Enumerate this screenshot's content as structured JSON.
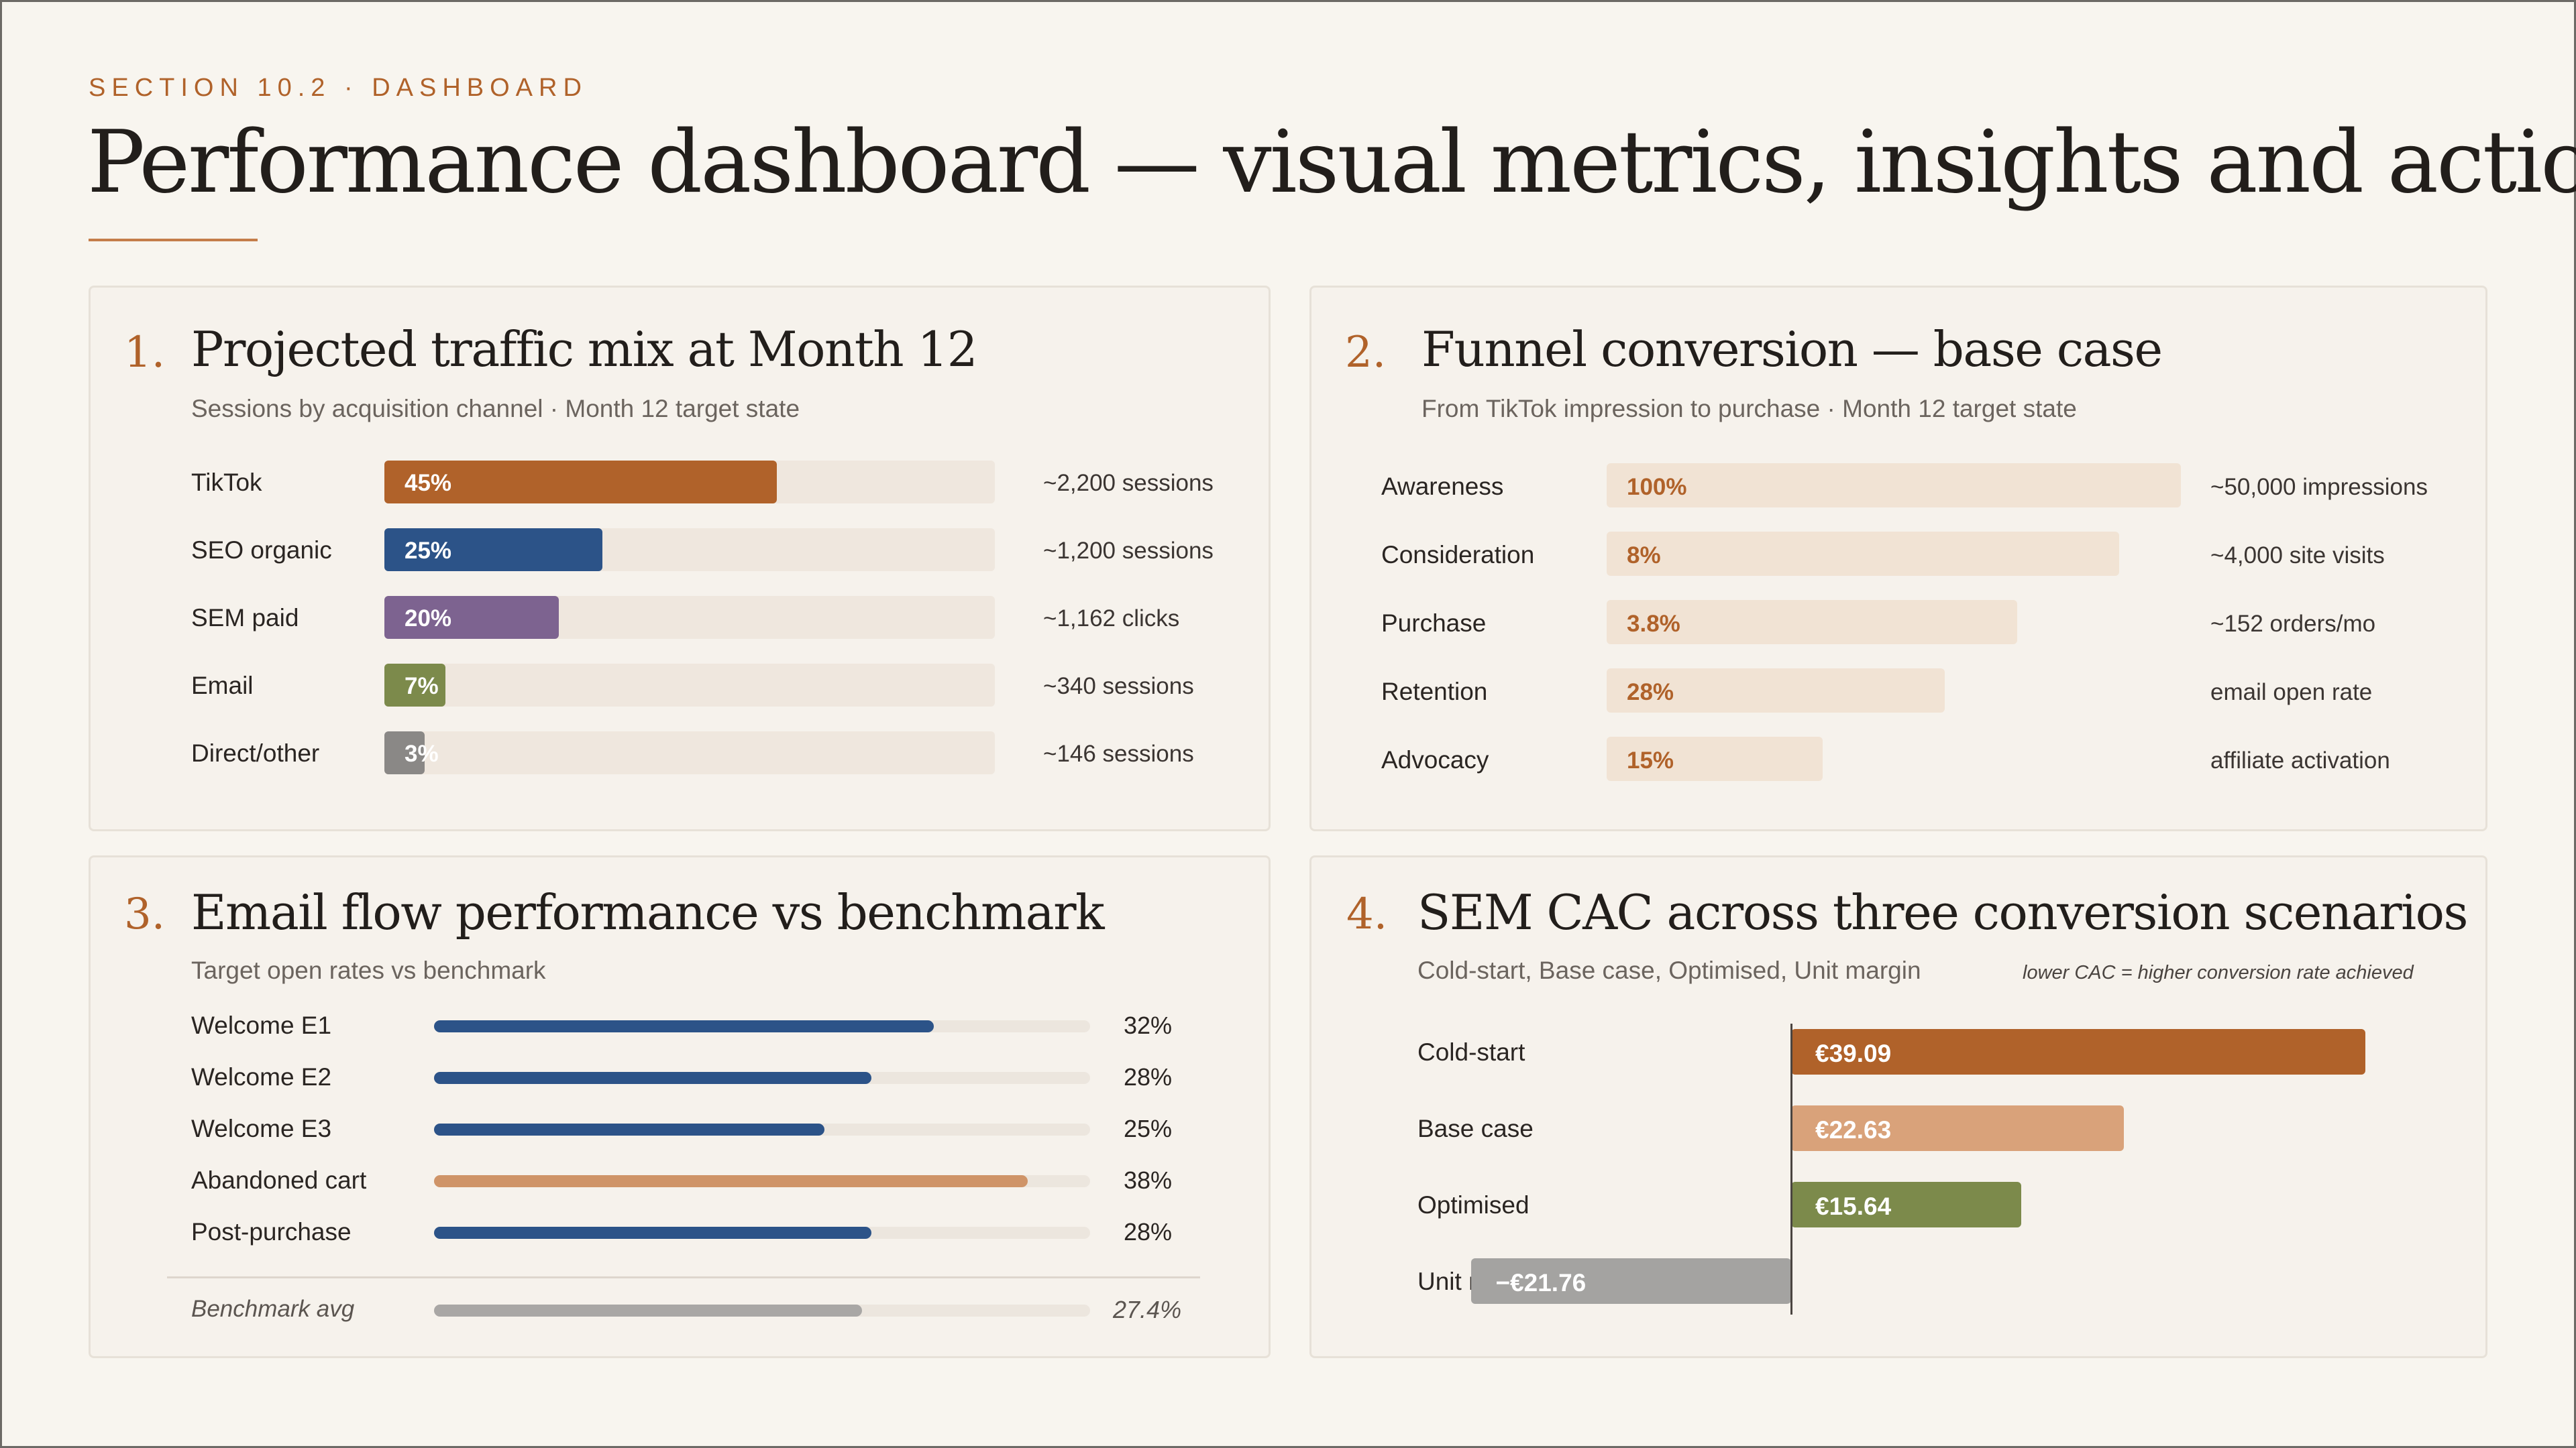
{
  "header": {
    "section": "SECTION 10.2 · DASHBOARD",
    "title": "Performance dashboard — visual metrics, insights and actions"
  },
  "colors": {
    "accent": "#b0622a",
    "navy": "#2c5388",
    "purple": "#7d6390",
    "olive": "#7c8a4b",
    "grey": "#8a8886",
    "peach": "#d9a27a",
    "funnel_fill": "#f1e3d4"
  },
  "traffic": {
    "number": "1.",
    "title": "Projected traffic mix at Month 12",
    "subtitle": "Sessions by acquisition channel · Month 12 target state",
    "chart_data": {
      "type": "bar",
      "orientation": "horizontal",
      "categories": [
        "TikTok",
        "SEO organic",
        "SEM paid",
        "Email",
        "Direct/other"
      ],
      "values": [
        45,
        25,
        20,
        7,
        3
      ],
      "value_labels": [
        "45%",
        "25%",
        "20%",
        "7%",
        "3%"
      ],
      "annotations": [
        "~2,200 sessions",
        "~1,200 sessions",
        "~1,162 clicks",
        "~340 sessions",
        "~146 sessions"
      ],
      "colors": [
        "#b0622a",
        "#2c5388",
        "#7d6390",
        "#7c8a4b",
        "#8a8886"
      ],
      "xlim": [
        0,
        70
      ]
    }
  },
  "funnel": {
    "number": "2.",
    "title": "Funnel conversion — base case",
    "subtitle": "From TikTok impression to purchase · Month 12 target state",
    "chart_data": {
      "type": "bar",
      "orientation": "horizontal",
      "categories": [
        "Awareness",
        "Consideration",
        "Purchase",
        "Retention",
        "Advocacy"
      ],
      "value_labels": [
        "100%",
        "8%",
        "3.8%",
        "28%",
        "15%"
      ],
      "annotations": [
        "~50,000 impressions",
        "~4,000 site visits",
        "~152 orders/mo",
        "email open rate",
        "affiliate activation"
      ]
    }
  },
  "email": {
    "number": "3.",
    "title": "Email flow performance vs benchmark",
    "subtitle": "Target open rates vs benchmark",
    "chart_data": {
      "type": "bar",
      "orientation": "horizontal",
      "categories": [
        "Welcome E1",
        "Welcome E2",
        "Welcome E3",
        "Abandoned cart",
        "Post-purchase"
      ],
      "values": [
        32,
        28,
        25,
        38,
        28
      ],
      "value_labels": [
        "32%",
        "28%",
        "25%",
        "38%",
        "28%"
      ],
      "colors": [
        "#2c5388",
        "#2c5388",
        "#2c5388",
        "#cf9468",
        "#2c5388"
      ],
      "benchmark": {
        "label": "Benchmark avg",
        "value": 27.4,
        "value_label": "27.4%"
      }
    }
  },
  "sem": {
    "number": "4.",
    "title": "SEM CAC across three conversion scenarios",
    "subtitle": "Cold-start, Base case, Optimised, Unit margin",
    "note": "lower CAC = higher conversion rate achieved",
    "chart_data": {
      "type": "bar",
      "orientation": "horizontal",
      "categories": [
        "Cold-start",
        "Base case",
        "Optimised",
        "Unit margin"
      ],
      "values": [
        39.09,
        22.63,
        15.64,
        -21.76
      ],
      "value_labels": [
        "€39.09",
        "€22.63",
        "€15.64",
        "−€21.76"
      ],
      "colors": [
        "#b0622a",
        "#d9a27a",
        "#7c8a4b",
        "#a4a3a1"
      ]
    }
  }
}
